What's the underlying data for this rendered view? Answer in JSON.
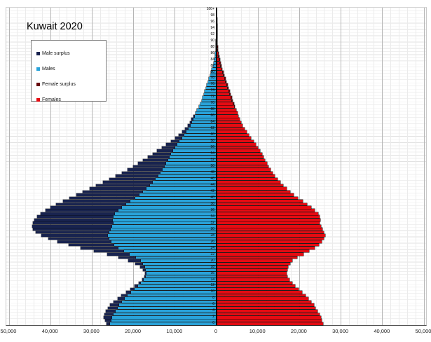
{
  "title": "Kuwait 2020",
  "legend": {
    "items": [
      {
        "label": "Male surplus",
        "color": "#18234f"
      },
      {
        "label": "Males",
        "color": "#29a3da"
      },
      {
        "label": "Female surplus",
        "color": "#67090e"
      },
      {
        "label": "Females",
        "color": "#e50b12"
      }
    ]
  },
  "axes": {
    "x_tick_labels": [
      "50,000",
      "40,000",
      "30,000",
      "20,000",
      "10,000",
      "0",
      "10,000",
      "20,000",
      "30,000",
      "40,000",
      "50,000"
    ],
    "x_tick_values": [
      -50000,
      -40000,
      -30000,
      -20000,
      -10000,
      0,
      10000,
      20000,
      30000,
      40000,
      50000
    ],
    "age_label_step": 2,
    "top_age_label": "100+"
  },
  "chart_data": {
    "type": "bar",
    "subtype": "population-pyramid",
    "title": "Kuwait 2020",
    "orientation": "horizontal",
    "grid": "on",
    "legend_position": "upper-left",
    "x_axis": {
      "min": -50000,
      "max": 50000,
      "major_tick": 10000,
      "minor_tick": 2000,
      "unit": "people"
    },
    "y_axis": {
      "label": "age",
      "min": 0,
      "max": 100,
      "top_bin": "100+",
      "bin": 1
    },
    "age_min": 0,
    "age_max": 100,
    "series": [
      {
        "name": "Males",
        "side": "left",
        "values": [
          26500,
          26900,
          27200,
          27000,
          26700,
          26200,
          25600,
          24800,
          23900,
          22900,
          21800,
          20700,
          19700,
          18700,
          17900,
          17400,
          17300,
          17700,
          18400,
          19600,
          21300,
          23600,
          26400,
          29500,
          32700,
          35700,
          38400,
          40600,
          42300,
          43500,
          44200,
          44500,
          44300,
          43900,
          43300,
          42400,
          41300,
          40000,
          38600,
          37000,
          35400,
          33800,
          32200,
          30600,
          29000,
          27400,
          25800,
          24300,
          22800,
          21400,
          20100,
          18900,
          17700,
          16500,
          15400,
          14300,
          13200,
          12100,
          11000,
          10000,
          9100,
          8300,
          7600,
          7000,
          6500,
          6000,
          5500,
          5100,
          4700,
          4300,
          3950,
          3600,
          3300,
          3050,
          2800,
          2550,
          2300,
          2050,
          1800,
          1550,
          1320,
          1100,
          900,
          710,
          540,
          410,
          310,
          230,
          170,
          125,
          90,
          65,
          47,
          33,
          23,
          16,
          11,
          8,
          5,
          4,
          6
        ]
      },
      {
        "name": "Females",
        "side": "right",
        "values": [
          25600,
          25400,
          25100,
          24800,
          24400,
          23900,
          23400,
          22800,
          22100,
          21400,
          20600,
          19800,
          19000,
          18200,
          17500,
          17100,
          16900,
          17000,
          17300,
          17700,
          18300,
          19500,
          20900,
          22300,
          23600,
          24700,
          25400,
          25900,
          26100,
          25900,
          25500,
          25100,
          24900,
          25000,
          24900,
          24500,
          23700,
          22800,
          21800,
          20700,
          19600,
          18600,
          17700,
          16900,
          16100,
          15400,
          14700,
          14100,
          13500,
          13000,
          12500,
          12100,
          11700,
          11300,
          10900,
          10400,
          9900,
          9400,
          8900,
          8300,
          7700,
          7200,
          6700,
          6300,
          5900,
          5600,
          5300,
          5000,
          4700,
          4400,
          4150,
          3900,
          3650,
          3400,
          3150,
          2900,
          2650,
          2400,
          2150,
          1900,
          1650,
          1400,
          1180,
          970,
          790,
          630,
          490,
          375,
          285,
          215,
          160,
          115,
          85,
          60,
          43,
          30,
          21,
          15,
          10,
          7,
          11
        ]
      }
    ]
  }
}
